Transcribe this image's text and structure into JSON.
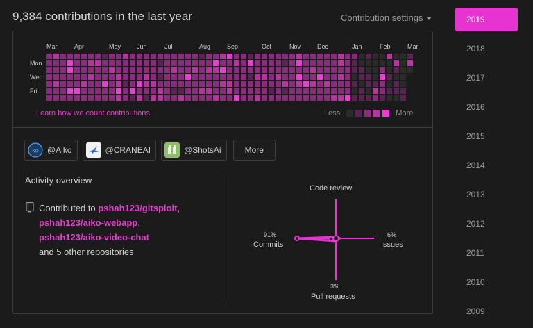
{
  "header": {
    "title": "9,384 contributions in the last year",
    "settings_label": "Contribution settings"
  },
  "calendar": {
    "months": [
      "Mar",
      "Apr",
      "May",
      "Jun",
      "Jul",
      "Aug",
      "Sep",
      "Oct",
      "Nov",
      "Dec",
      "Jan",
      "Feb",
      "Mar"
    ],
    "days": [
      "Mon",
      "Wed",
      "Fri"
    ],
    "learn_link": "Learn how we count contributions.",
    "legend_less": "Less",
    "legend_more": "More",
    "colors": [
      "#2b2b2b",
      "#5a2452",
      "#8a2c7d",
      "#b8349f",
      "#e83fd0"
    ]
  },
  "orgs": [
    {
      "label": "@Aiko",
      "avatar": "ko",
      "avatar_bg": "#1e3a5a",
      "avatar_fg": "#4aa3ff"
    },
    {
      "label": "@CRANEAI",
      "avatar": "bird-icon",
      "avatar_bg": "#f2f2f2",
      "avatar_fg": "#2a6fd6"
    },
    {
      "label": "@ShotsAi",
      "avatar": "shots-icon",
      "avatar_bg": "#8fbf6a",
      "avatar_fg": "#e8f3dc"
    }
  ],
  "more_label": "More",
  "activity": {
    "title": "Activity overview",
    "prefix": "Contributed to ",
    "repos": [
      "pshah123/gitsploit",
      "pshah123/aiko-webapp",
      "pshah123/aiko-video-chat"
    ],
    "suffix": "and 5 other repositories"
  },
  "radar": {
    "code_review": {
      "label": "Code review"
    },
    "commits": {
      "label": "Commits",
      "pct": "91%"
    },
    "issues": {
      "label": "Issues",
      "pct": "6%"
    },
    "pull_requests": {
      "label": "Pull requests",
      "pct": "3%"
    },
    "color": "#e633d1"
  },
  "years": [
    "2019",
    "2018",
    "2017",
    "2016",
    "2015",
    "2014",
    "2013",
    "2012",
    "2011",
    "2010",
    "2009"
  ],
  "active_year": "2019"
}
